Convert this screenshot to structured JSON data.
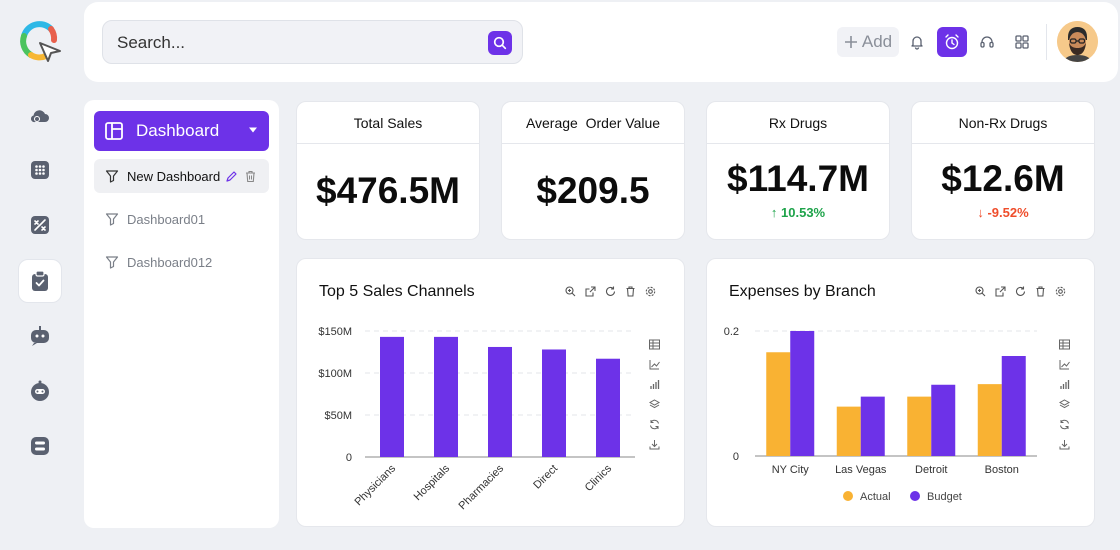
{
  "topbar": {
    "search_placeholder": "Search...",
    "add_label": "Add",
    "icons": [
      "bell-icon",
      "alarm-clock-icon",
      "headset-icon",
      "grid-icon"
    ]
  },
  "rail": {
    "items": [
      "cloud-icon",
      "apps-grid-icon",
      "board-icon",
      "clipboard-check-icon",
      "bot-icon",
      "robot-icon",
      "toggle-icon"
    ],
    "active_index": 3
  },
  "dashboard_panel": {
    "selected": "Dashboard",
    "items": [
      {
        "label": "New Dashboard"
      },
      {
        "label": "Dashboard01"
      },
      {
        "label": "Dashboard012"
      }
    ]
  },
  "kpis": [
    {
      "title": "Total Sales",
      "value": "$476.5M",
      "change": ""
    },
    {
      "title": "Average  Order Value",
      "value": "$209.5",
      "change": ""
    },
    {
      "title": "Rx Drugs",
      "value": "$114.7M",
      "change": "10.53%",
      "direction": "up"
    },
    {
      "title": "Non-Rx Drugs",
      "value": "$12.6M",
      "change": "-9.52%",
      "direction": "down"
    }
  ],
  "colors": {
    "accent": "#6d32e8",
    "secondary": "#f9b233",
    "up": "#1ea34a",
    "down": "#ef4d2b"
  },
  "chart_data": [
    {
      "type": "bar",
      "title": "Top 5 Sales Channels",
      "categories": [
        "Physicians",
        "Hospitals",
        "Pharmacies",
        "Direct",
        "Clinics"
      ],
      "values": [
        143,
        143,
        131,
        128,
        117
      ],
      "yticks": [
        "0",
        "$50M",
        "$100M",
        "$150M"
      ],
      "ylim": [
        0,
        150
      ],
      "grid": true
    },
    {
      "type": "bar",
      "title": "Expenses by Branch",
      "categories": [
        "NY City",
        "Las Vegas",
        "Detroit",
        "Boston"
      ],
      "series": [
        {
          "name": "Actual",
          "values": [
            0.166,
            0.079,
            0.095,
            0.115
          ]
        },
        {
          "name": "Budget",
          "values": [
            0.2,
            0.095,
            0.114,
            0.16
          ]
        }
      ],
      "yticks": [
        "0",
        "0.2"
      ],
      "ylim": [
        0,
        0.2
      ],
      "grid": true,
      "legend": "bottom"
    }
  ]
}
